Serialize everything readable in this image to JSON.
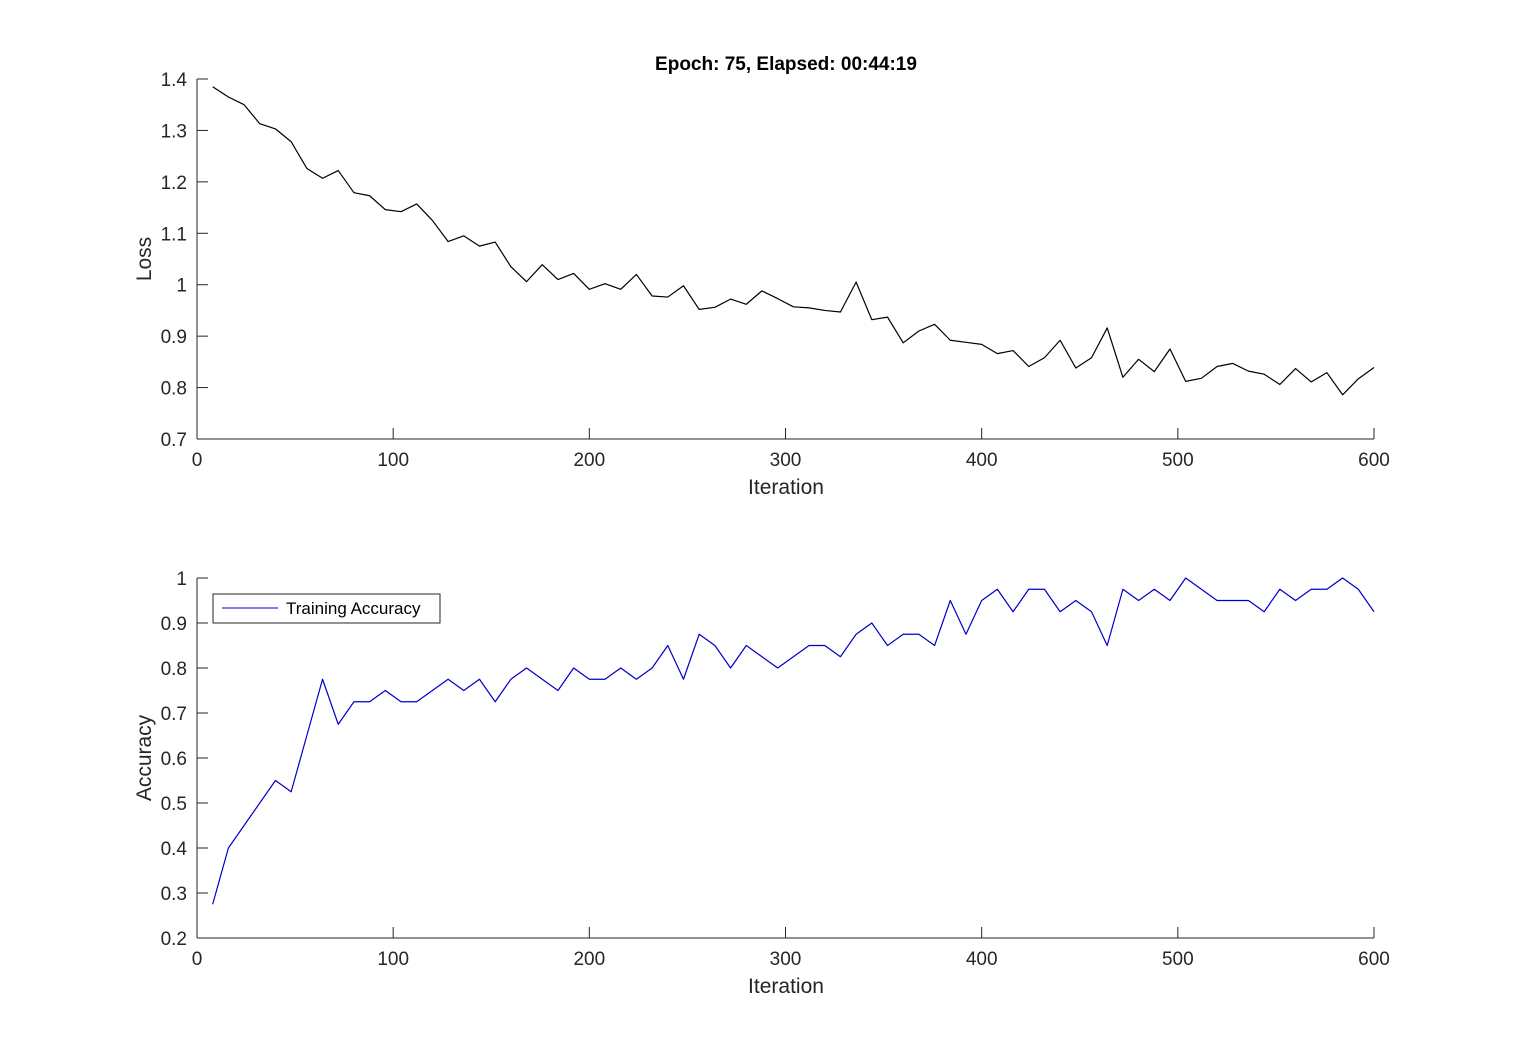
{
  "figure": {
    "title": "Epoch: 75, Elapsed: 00:44:19"
  },
  "chart_data": [
    {
      "type": "line",
      "title": "Epoch: 75, Elapsed: 00:44:19",
      "xlabel": "Iteration",
      "ylabel": "Loss",
      "xlim": [
        0,
        600
      ],
      "ylim": [
        0.7,
        1.4
      ],
      "xticks": [
        0,
        100,
        200,
        300,
        400,
        500,
        600
      ],
      "yticks": [
        0.7,
        0.8,
        0.9,
        1,
        1.1,
        1.2,
        1.3,
        1.4
      ],
      "grid": false,
      "legend": null,
      "series": [
        {
          "color": "#000000",
          "x": [
            8,
            16,
            24,
            32,
            40,
            48,
            56,
            64,
            72,
            80,
            88,
            96,
            104,
            112,
            120,
            128,
            136,
            144,
            152,
            160,
            168,
            176,
            184,
            192,
            200,
            208,
            216,
            224,
            232,
            240,
            248,
            256,
            264,
            272,
            280,
            288,
            296,
            304,
            312,
            320,
            328,
            336,
            344,
            352,
            360,
            368,
            376,
            384,
            392,
            400,
            408,
            416,
            424,
            432,
            440,
            448,
            456,
            464,
            472,
            480,
            488,
            496,
            504,
            512,
            520,
            528,
            536,
            544,
            552,
            560,
            568,
            576,
            584,
            592,
            600
          ],
          "values": [
            1.385,
            1.365,
            1.35,
            1.313,
            1.303,
            1.278,
            1.226,
            1.207,
            1.222,
            1.179,
            1.173,
            1.146,
            1.142,
            1.157,
            1.125,
            1.084,
            1.095,
            1.075,
            1.083,
            1.035,
            1.006,
            1.039,
            1.01,
            1.022,
            0.991,
            1.002,
            0.991,
            1.02,
            0.978,
            0.976,
            0.998,
            0.952,
            0.956,
            0.972,
            0.962,
            0.988,
            0.973,
            0.957,
            0.955,
            0.95,
            0.947,
            1.005,
            0.932,
            0.937,
            0.887,
            0.91,
            0.923,
            0.892,
            0.888,
            0.884,
            0.866,
            0.872,
            0.841,
            0.858,
            0.892,
            0.838,
            0.858,
            0.916,
            0.82,
            0.855,
            0.831,
            0.875,
            0.812,
            0.818,
            0.841,
            0.847,
            0.832,
            0.826,
            0.806,
            0.837,
            0.811,
            0.829,
            0.786,
            0.817,
            0.839
          ]
        }
      ]
    },
    {
      "type": "line",
      "xlabel": "Iteration",
      "ylabel": "Accuracy",
      "xlim": [
        0,
        600
      ],
      "ylim": [
        0.2,
        1
      ],
      "xticks": [
        0,
        100,
        200,
        300,
        400,
        500,
        600
      ],
      "yticks": [
        0.2,
        0.3,
        0.4,
        0.5,
        0.6,
        0.7,
        0.8,
        0.9,
        1
      ],
      "grid": false,
      "legend": "top-left",
      "series": [
        {
          "name": "Training Accuracy",
          "color": "#0000c8",
          "x": [
            8,
            16,
            24,
            32,
            40,
            48,
            56,
            64,
            72,
            80,
            88,
            96,
            104,
            112,
            120,
            128,
            136,
            144,
            152,
            160,
            168,
            176,
            184,
            192,
            200,
            208,
            216,
            224,
            232,
            240,
            248,
            256,
            264,
            272,
            280,
            288,
            296,
            304,
            312,
            320,
            328,
            336,
            344,
            352,
            360,
            368,
            376,
            384,
            392,
            400,
            408,
            416,
            424,
            432,
            440,
            448,
            456,
            464,
            472,
            480,
            488,
            496,
            504,
            512,
            520,
            528,
            536,
            544,
            552,
            560,
            568,
            576,
            584,
            592,
            600
          ],
          "values": [
            0.275,
            0.4,
            0.45,
            0.5,
            0.55,
            0.525,
            0.65,
            0.775,
            0.675,
            0.725,
            0.725,
            0.75,
            0.725,
            0.725,
            0.75,
            0.775,
            0.75,
            0.775,
            0.725,
            0.775,
            0.8,
            0.775,
            0.75,
            0.8,
            0.775,
            0.775,
            0.8,
            0.775,
            0.8,
            0.85,
            0.775,
            0.875,
            0.85,
            0.8,
            0.85,
            0.825,
            0.8,
            0.825,
            0.85,
            0.85,
            0.825,
            0.875,
            0.9,
            0.85,
            0.875,
            0.875,
            0.85,
            0.95,
            0.875,
            0.95,
            0.975,
            0.925,
            0.975,
            0.975,
            0.925,
            0.95,
            0.925,
            0.85,
            0.975,
            0.95,
            0.975,
            0.95,
            1.0,
            0.975,
            0.95,
            0.95,
            0.95,
            0.925,
            0.975,
            0.95,
            0.975,
            0.975,
            1.0,
            0.975,
            0.925
          ]
        }
      ]
    }
  ]
}
